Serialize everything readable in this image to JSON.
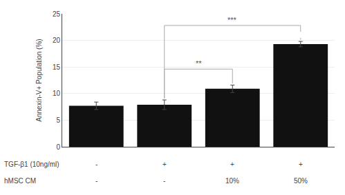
{
  "chart_data": {
    "type": "bar",
    "categories": [
      null,
      null,
      null,
      null
    ],
    "values": [
      7.7,
      7.9,
      10.9,
      19.3
    ],
    "errors": [
      0.7,
      0.9,
      0.7,
      0.5
    ],
    "color": "#111111",
    "ylabel": "Annexin-V+ Population (%)",
    "ylim": [
      0,
      25
    ],
    "yticks": [
      0,
      5,
      10,
      15,
      20,
      25
    ],
    "grid": true,
    "tick_labels": "y",
    "brackets": [
      {
        "label": "**",
        "from": 1,
        "to": 2,
        "color": "#aaaaaa",
        "line_style": "solid"
      },
      {
        "label": "***",
        "from": 1,
        "to": 3,
        "color": "#aaaaaa",
        "line_style": "dashed"
      }
    ],
    "rows": [
      {
        "label": "TGF-β1 (10ng/ml)",
        "values": [
          "-",
          "+",
          "+",
          "+"
        ]
      },
      {
        "label": "hMSC CM",
        "values": [
          "-",
          "-",
          "10%",
          "50%"
        ]
      }
    ]
  }
}
